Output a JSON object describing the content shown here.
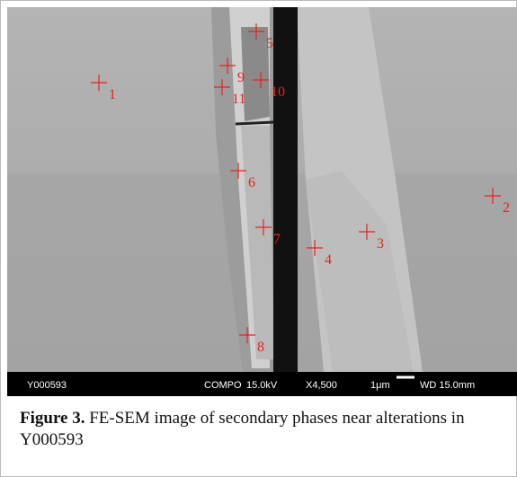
{
  "image": {
    "markers": [
      "1",
      "2",
      "3",
      "4",
      "5",
      "6",
      "7",
      "8",
      "9",
      "10",
      "11"
    ],
    "info_bar": {
      "sample": "Y000593",
      "mode": "COMPO",
      "voltage": "15.0kV",
      "magnification": "X4,500",
      "scale": "1μm",
      "working_distance": "WD 15.0mm"
    }
  },
  "caption": {
    "label": "Figure 3.",
    "text": "FE-SEM image of secondary phases near alterations in Y000593"
  }
}
